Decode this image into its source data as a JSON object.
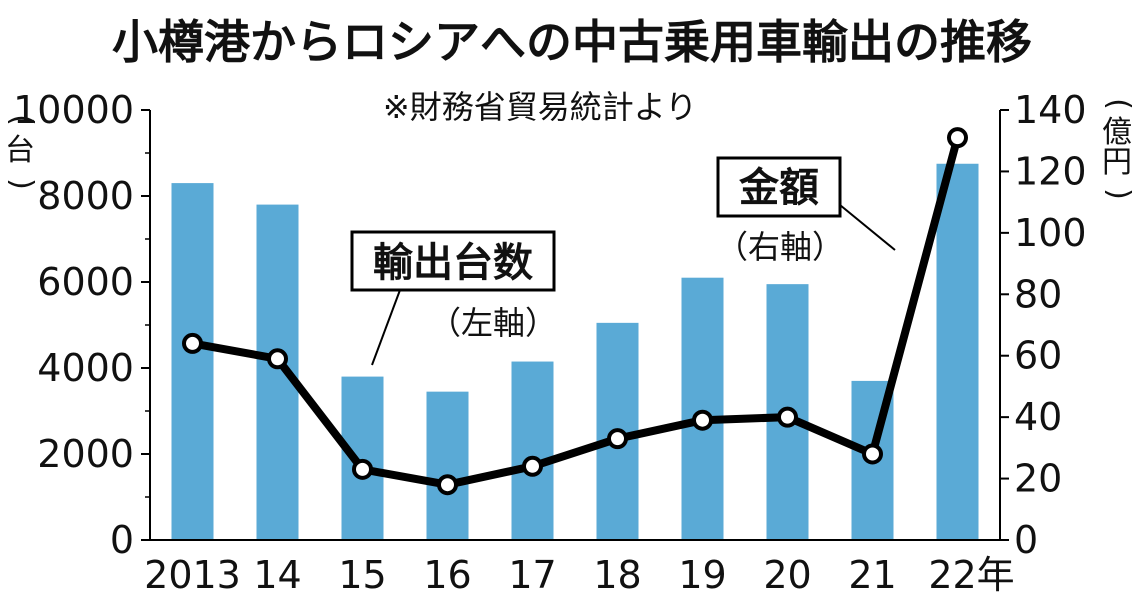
{
  "chart_data": {
    "type": "bar+line",
    "title": "小樽港からロシアへの中古乗用車輸出の推移",
    "subtitle": "※財務省貿易統計より",
    "categories": [
      "2013",
      "14",
      "15",
      "16",
      "17",
      "18",
      "19",
      "20",
      "21",
      "22"
    ],
    "x_unit": "年",
    "series": [
      {
        "name": "輸出台数",
        "axis_note": "（左軸）",
        "type": "bar",
        "axis": "left",
        "color": "#5aaad6",
        "values": [
          8300,
          7800,
          3800,
          3450,
          4150,
          5050,
          6100,
          5950,
          3700,
          8750
        ]
      },
      {
        "name": "金額",
        "axis_note": "（右軸）",
        "type": "line",
        "axis": "right",
        "color": "#000000",
        "values": [
          64,
          59,
          23,
          18,
          24,
          33,
          39,
          40,
          28,
          131
        ]
      }
    ],
    "left_axis": {
      "unit": "（台）",
      "ylim": [
        0,
        10000
      ],
      "ticks": [
        "0",
        "2000",
        "4000",
        "6000",
        "8000",
        "10000"
      ]
    },
    "right_axis": {
      "unit": "（億円）",
      "ylim": [
        0,
        140
      ],
      "ticks": [
        "0",
        "20",
        "40",
        "60",
        "80",
        "100",
        "120",
        "140"
      ]
    }
  }
}
